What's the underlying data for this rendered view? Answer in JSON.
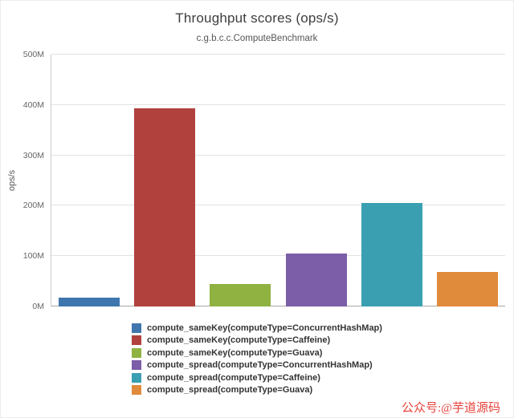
{
  "watermark": "公众号:@芋道源码",
  "chart_data": {
    "type": "bar",
    "title": "Throughput scores (ops/s)",
    "subtitle": "c.g.b.c.c.ComputeBenchmark",
    "ylabel": "ops/s",
    "value_unit": "millions of ops/s",
    "ylim": [
      0,
      500
    ],
    "yticks": [
      0,
      100,
      200,
      300,
      400,
      500
    ],
    "ytick_labels": [
      "0M",
      "100M",
      "200M",
      "300M",
      "400M",
      "500M"
    ],
    "grid": true,
    "legend_position": "bottom",
    "categories": [
      "compute_sameKey(computeType=ConcurrentHashMap)",
      "compute_sameKey(computeType=Caffeine)",
      "compute_sameKey(computeType=Guava)",
      "compute_spread(computeType=ConcurrentHashMap)",
      "compute_spread(computeType=Caffeine)",
      "compute_spread(computeType=Guava)"
    ],
    "series": [
      {
        "name": "compute_sameKey(computeType=ConcurrentHashMap)",
        "value": 18,
        "color": "#3f76ae"
      },
      {
        "name": "compute_sameKey(computeType=Caffeine)",
        "value": 393,
        "color": "#b1413d"
      },
      {
        "name": "compute_sameKey(computeType=Guava)",
        "value": 45,
        "color": "#8fb241"
      },
      {
        "name": "compute_spread(computeType=ConcurrentHashMap)",
        "value": 105,
        "color": "#7b5ea7"
      },
      {
        "name": "compute_spread(computeType=Caffeine)",
        "value": 205,
        "color": "#3b9fb2"
      },
      {
        "name": "compute_spread(computeType=Guava)",
        "value": 68,
        "color": "#e08a3c"
      }
    ]
  }
}
